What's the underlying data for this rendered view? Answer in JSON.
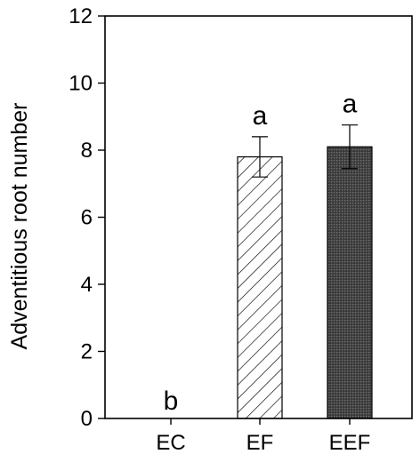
{
  "chart_data": {
    "type": "bar",
    "title": "",
    "xlabel": "",
    "ylabel": "Adventitious root number",
    "ylim": [
      0,
      12
    ],
    "yticks": [
      0,
      2,
      4,
      6,
      8,
      10,
      12
    ],
    "grid": false,
    "categories": [
      "EC",
      "EF",
      "EEF"
    ],
    "values": [
      0,
      7.8,
      8.1
    ],
    "errors": [
      0,
      0.6,
      0.65
    ],
    "significance_letters": [
      "b",
      "a",
      "a"
    ],
    "bar_fills": [
      "none",
      "diagonal-hatch",
      "dark-dotted"
    ],
    "colors": {
      "axis": "#000000",
      "dark_bar": "#4a4a4a",
      "hatch": "#000000"
    }
  }
}
